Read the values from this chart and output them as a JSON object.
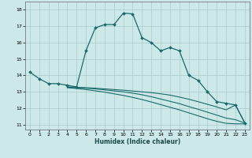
{
  "xlabel": "Humidex (Indice chaleur)",
  "background_color": "#cce8e8",
  "grid_color": "#aacccc",
  "line_color": "#1a6b6b",
  "xlim": [
    -0.5,
    23.5
  ],
  "ylim": [
    10.7,
    18.5
  ],
  "yticks": [
    11,
    12,
    13,
    14,
    15,
    16,
    17,
    18
  ],
  "xticks": [
    0,
    1,
    2,
    3,
    4,
    5,
    6,
    7,
    8,
    9,
    10,
    11,
    12,
    13,
    14,
    15,
    16,
    17,
    18,
    19,
    20,
    21,
    22,
    23
  ],
  "line1_x": [
    0,
    1,
    2,
    3,
    4,
    5,
    6,
    7,
    8,
    9,
    10,
    11,
    12,
    13,
    14,
    15,
    16,
    17,
    18,
    19,
    20,
    21,
    22,
    23
  ],
  "line1_y": [
    14.2,
    13.8,
    13.5,
    13.5,
    13.4,
    13.3,
    15.5,
    16.9,
    17.1,
    17.1,
    17.8,
    17.75,
    16.3,
    16.0,
    15.5,
    15.7,
    15.5,
    14.0,
    13.7,
    13.0,
    12.4,
    12.3,
    12.2,
    11.1
  ],
  "line2_x": [
    4,
    5,
    6,
    7,
    8,
    9,
    10,
    11,
    12,
    13,
    14,
    15,
    16,
    17,
    18,
    19,
    20,
    21,
    22,
    23
  ],
  "line2_y": [
    13.3,
    13.28,
    13.25,
    13.22,
    13.18,
    13.14,
    13.1,
    13.05,
    13.0,
    12.95,
    12.88,
    12.8,
    12.68,
    12.55,
    12.4,
    12.24,
    12.08,
    11.9,
    12.2,
    11.1
  ],
  "line3_x": [
    4,
    5,
    6,
    7,
    8,
    9,
    10,
    11,
    12,
    13,
    14,
    15,
    16,
    17,
    18,
    19,
    20,
    21,
    22,
    23
  ],
  "line3_y": [
    13.28,
    13.25,
    13.22,
    13.18,
    13.12,
    13.06,
    13.0,
    12.92,
    12.82,
    12.7,
    12.56,
    12.42,
    12.28,
    12.1,
    11.94,
    11.76,
    11.58,
    11.4,
    11.3,
    11.1
  ],
  "line4_x": [
    4,
    5,
    6,
    7,
    8,
    9,
    10,
    11,
    12,
    13,
    14,
    15,
    16,
    17,
    18,
    19,
    20,
    21,
    22,
    23
  ],
  "line4_y": [
    13.25,
    13.2,
    13.14,
    13.06,
    12.98,
    12.88,
    12.78,
    12.66,
    12.53,
    12.38,
    12.22,
    12.06,
    11.9,
    11.72,
    11.54,
    11.36,
    11.2,
    11.08,
    11.05,
    11.05
  ]
}
